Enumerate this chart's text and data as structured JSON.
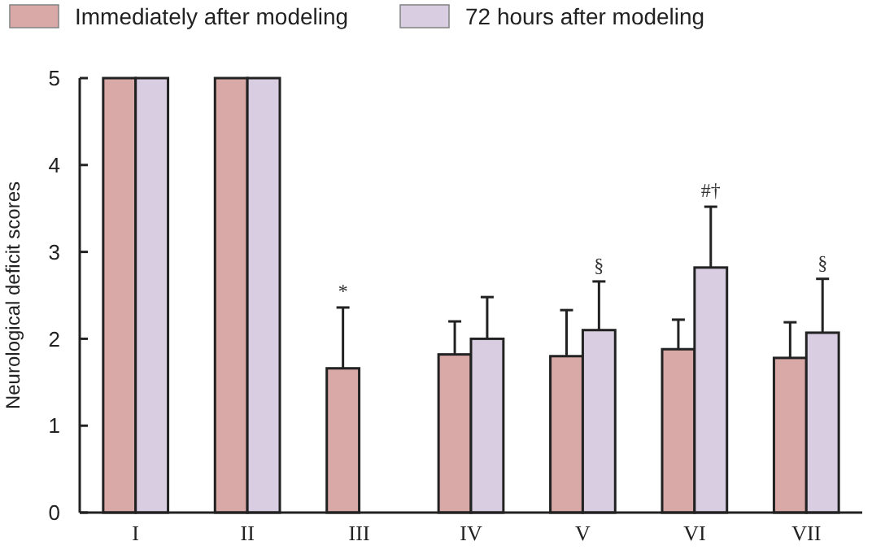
{
  "chart_data": {
    "type": "bar",
    "ylabel": "Neurological deficit scores",
    "categories": [
      "I",
      "II",
      "III",
      "IV",
      "V",
      "VI",
      "VII"
    ],
    "series": [
      {
        "name": "Immediately after modeling",
        "color": "#d9a9a8",
        "values": [
          5,
          5,
          1.66,
          1.82,
          1.8,
          1.88,
          1.78
        ],
        "errors": [
          null,
          null,
          [
            1.66,
            2.36
          ],
          [
            1.82,
            2.2
          ],
          [
            1.8,
            2.33
          ],
          [
            1.88,
            2.22
          ],
          [
            1.78,
            2.19
          ]
        ]
      },
      {
        "name": "72 hours after modeling",
        "color": "#d9cde2",
        "values": [
          5,
          5,
          null,
          2.0,
          2.1,
          2.82,
          2.07
        ],
        "errors": [
          null,
          null,
          null,
          [
            2.0,
            2.48
          ],
          [
            2.1,
            2.66
          ],
          [
            2.82,
            3.52
          ],
          [
            2.07,
            2.69
          ]
        ]
      }
    ],
    "ylim": [
      0,
      5
    ],
    "yticks": [
      0,
      1,
      2,
      3,
      4,
      5
    ],
    "legend": "top",
    "grid": false,
    "annotations": [
      "*",
      "§",
      "#†",
      "§"
    ]
  }
}
